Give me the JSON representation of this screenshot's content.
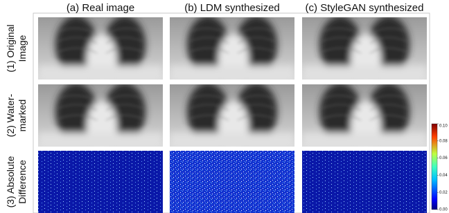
{
  "figure": {
    "column_headers": [
      "(a) Real image",
      "(b) LDM synthesized",
      "(c) StyleGAN synthesized"
    ],
    "row_labels": [
      [
        "(1) Original",
        "Image"
      ],
      [
        "(2) Water-",
        "marked"
      ],
      [
        "(3) Absolute",
        "Difference"
      ]
    ],
    "colorbar": {
      "range": [
        0,
        0.1
      ],
      "ticks": [
        {
          "value": 0,
          "label": "0.00"
        },
        {
          "value": 0.02,
          "label": "0.02"
        },
        {
          "value": 0.04,
          "label": "0.04"
        },
        {
          "value": 0.06,
          "label": "0.06"
        },
        {
          "value": 0.08,
          "label": "0.08"
        },
        {
          "value": 0.1,
          "label": "0.10"
        }
      ]
    }
  }
}
